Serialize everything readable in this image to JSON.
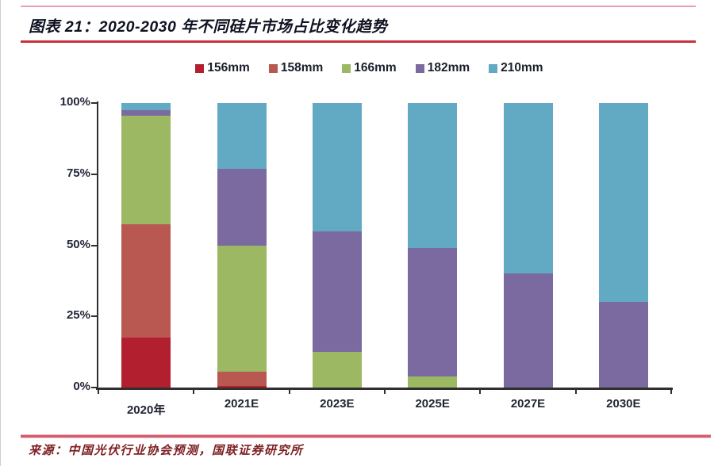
{
  "header": {
    "title": "图表 21：2020-2030 年不同硅片市场占比变化趋势"
  },
  "footer": {
    "source": "来源：中国光伏行业协会预测，国联证券研究所"
  },
  "colors": {
    "title_text": "#0e1220",
    "axis_text": "#23273a",
    "axis_line": "#2f2f2f",
    "rule_top": "#e99fae",
    "rule_title": "#c9323c",
    "rule_footer": "#d3606f",
    "source_text": "#7e2022",
    "series_156mm": "#B2202F",
    "series_158mm": "#B85850",
    "series_166mm": "#9CB862",
    "series_182mm": "#7B6AA0",
    "series_210mm": "#62AAC4"
  },
  "chart_data": {
    "type": "bar",
    "stacked": true,
    "title": "图表 21：2020-2030 年不同硅片市场占比变化趋势",
    "xlabel": "",
    "ylabel": "",
    "categories": [
      "2020年",
      "2021E",
      "2023E",
      "2025E",
      "2027E",
      "2030E"
    ],
    "series": [
      {
        "name": "156mm",
        "color": "#B2202F",
        "values": [
          17.5,
          0.5,
          0,
          0,
          0,
          0
        ]
      },
      {
        "name": "158mm",
        "color": "#B85850",
        "values": [
          40,
          5,
          0,
          0,
          0,
          0
        ]
      },
      {
        "name": "166mm",
        "color": "#9CB862",
        "values": [
          38,
          44.5,
          12.5,
          4,
          0,
          0
        ]
      },
      {
        "name": "182mm",
        "color": "#7B6AA0",
        "values": [
          2,
          27,
          42.5,
          45,
          40,
          30
        ]
      },
      {
        "name": "210mm",
        "color": "#62AAC4",
        "values": [
          2.5,
          23,
          45,
          51,
          60,
          70
        ]
      }
    ],
    "y_ticks": [
      "100%",
      "75%",
      "50%",
      "25%",
      "0%"
    ],
    "y_tick_values": [
      100,
      75,
      50,
      25,
      0
    ],
    "ylim": [
      0,
      100
    ],
    "grid": false,
    "legend_position": "top"
  }
}
